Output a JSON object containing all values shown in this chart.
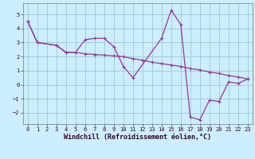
{
  "xlabel": "Windchill (Refroidissement éolien,°C)",
  "background_color": "#cceeff",
  "line_color": "#993399",
  "grid_color": "#99cccc",
  "x_data1": [
    0,
    1,
    3,
    4,
    5,
    6,
    7,
    8,
    9,
    10,
    11,
    14,
    15,
    16,
    17,
    18,
    19,
    20,
    21,
    22,
    23
  ],
  "y_data1": [
    4.5,
    3.0,
    2.8,
    2.3,
    2.3,
    3.2,
    3.3,
    3.3,
    2.7,
    1.3,
    0.5,
    3.3,
    5.3,
    4.3,
    -2.3,
    -2.5,
    -1.1,
    -1.2,
    0.2,
    0.1,
    0.4
  ],
  "x_data2": [
    0,
    1,
    3,
    4,
    5,
    6,
    7,
    8,
    9,
    10,
    11,
    12,
    13,
    14,
    15,
    16,
    17,
    18,
    19,
    20,
    21,
    22,
    23
  ],
  "y_data2": [
    4.5,
    3.0,
    2.8,
    2.3,
    2.3,
    2.2,
    2.15,
    2.1,
    2.05,
    2.0,
    1.85,
    1.75,
    1.6,
    1.5,
    1.4,
    1.3,
    1.15,
    1.05,
    0.9,
    0.8,
    0.65,
    0.55,
    0.4
  ],
  "xlim": [
    -0.5,
    23.5
  ],
  "ylim": [
    -2.8,
    5.8
  ],
  "xticks": [
    0,
    1,
    2,
    3,
    4,
    5,
    6,
    7,
    8,
    9,
    10,
    11,
    12,
    13,
    14,
    15,
    16,
    17,
    18,
    19,
    20,
    21,
    22,
    23
  ],
  "yticks": [
    -2,
    -1,
    0,
    1,
    2,
    3,
    4,
    5
  ],
  "tick_fontsize": 5.0,
  "xlabel_fontsize": 6.0
}
